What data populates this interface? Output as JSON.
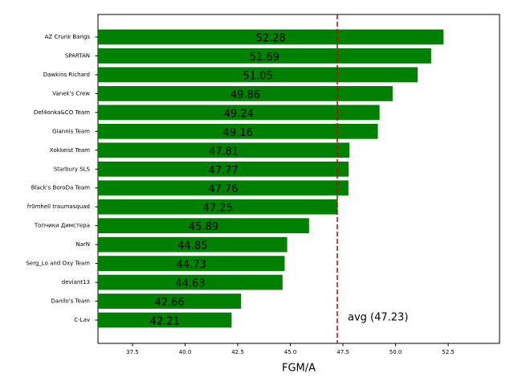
{
  "chart_data": {
    "type": "barh",
    "categories": [
      "AZ Crunk Bangs",
      "SPARTAN",
      "Dawkins Richard",
      "Vanek's Crew",
      "Def4onka&CO Team",
      "Giannis Team",
      "Xokkeist Team",
      "Starbury SLS",
      "Black's BoroDa Team",
      "fr0mhell traumasquad",
      "Топчики Димстера",
      "NarN",
      "Serg_Lo and Oxy Team",
      "deviant13",
      "Danilo's Team",
      "C-Lav"
    ],
    "values": [
      52.28,
      51.69,
      51.05,
      49.86,
      49.24,
      49.16,
      47.81,
      47.77,
      47.76,
      47.25,
      45.89,
      44.85,
      44.73,
      44.63,
      42.66,
      42.21
    ],
    "color": "#008000",
    "xlabel": "FGM/A",
    "xlim": [
      35.86,
      54.94
    ],
    "xticks": [
      37.5,
      {
        "value": 40,
        "label": "40.0"
      },
      42.5,
      {
        "value": 45,
        "label": "45.0"
      },
      47.5,
      {
        "value": 50,
        "label": "50.0"
      },
      52.5
    ],
    "average": 47.23,
    "average_color": "#cc0000",
    "annotation": "avg (47.23)"
  }
}
